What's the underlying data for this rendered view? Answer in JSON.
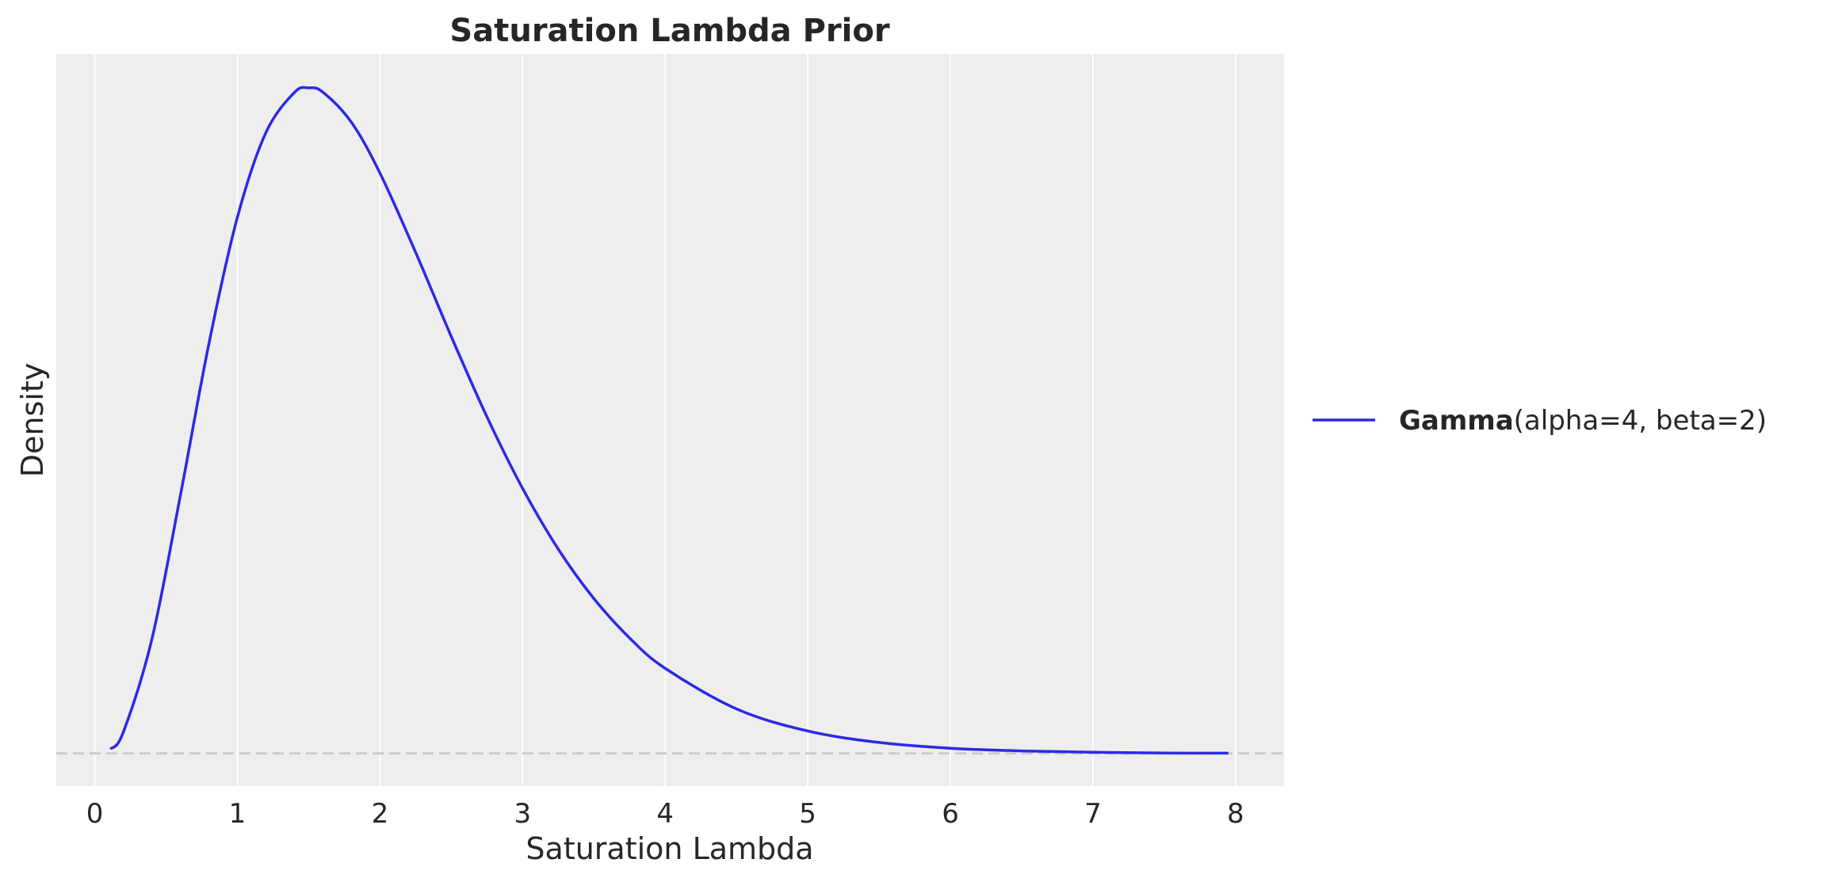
{
  "chart_data": {
    "type": "line",
    "title": "Saturation Lambda Prior",
    "xlabel": "Saturation Lambda",
    "ylabel": "Density",
    "xlim": [
      -0.27,
      8.34
    ],
    "ylim": [
      -0.022,
      0.471
    ],
    "xticks": [
      0,
      1,
      2,
      3,
      4,
      5,
      6,
      7,
      8
    ],
    "xtick_labels": [
      "0",
      "1",
      "2",
      "3",
      "4",
      "5",
      "6",
      "7",
      "8"
    ],
    "yticks_visible": false,
    "grid": "vertical",
    "background": "#eeeeee",
    "reference_line": {
      "y": 0,
      "style": "dashed",
      "color": "#cccccc"
    },
    "legend_placement": "center-right outside",
    "series": [
      {
        "name_bold": "Gamma",
        "name_rest": "(alpha=4, beta=2)",
        "color": "#2a2ae6",
        "x": [
          0.11,
          0.2,
          0.4,
          0.6,
          0.8,
          1.0,
          1.2,
          1.4,
          1.5,
          1.6,
          1.8,
          2.0,
          2.25,
          2.5,
          2.75,
          3.0,
          3.25,
          3.5,
          3.75,
          4.0,
          4.5,
          5.0,
          5.5,
          6.0,
          6.5,
          7.0,
          7.5,
          7.95
        ],
        "y": [
          0.0029,
          0.0143,
          0.0767,
          0.1735,
          0.2757,
          0.3609,
          0.418,
          0.445,
          0.4481,
          0.4452,
          0.4249,
          0.3907,
          0.3374,
          0.2807,
          0.2267,
          0.1785,
          0.1376,
          0.1043,
          0.0778,
          0.0573,
          0.03,
          0.0151,
          0.0074,
          0.0035,
          0.0017,
          0.0008,
          0.0003,
          0.0002
        ]
      }
    ]
  }
}
